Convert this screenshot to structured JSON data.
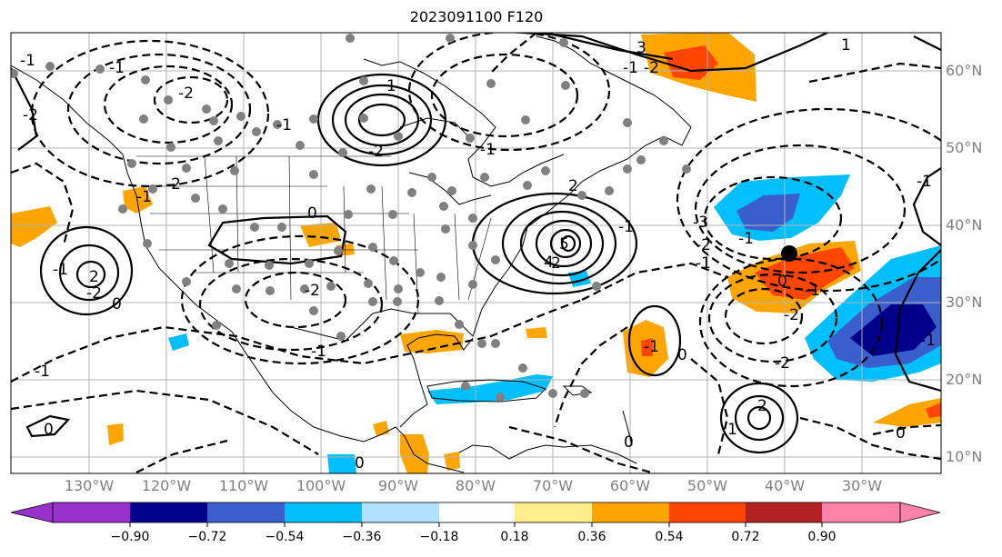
{
  "title": "2023091100 F120",
  "map": {
    "lat_labels": [
      "60°N",
      "50°N",
      "40°N",
      "30°N",
      "20°N",
      "10°N"
    ],
    "lon_labels": [
      "130°W",
      "120°W",
      "110°W",
      "100°W",
      "90°W",
      "80°W",
      "70°W",
      "60°W",
      "50°W",
      "40°W",
      "30°W"
    ],
    "contour_labels": [
      "-1",
      "-2",
      "-1",
      "-2",
      "1",
      "-1",
      "-2",
      "-1",
      "-2",
      "-1",
      "-2",
      "2",
      "0",
      "-1",
      "3",
      "-2",
      "-1",
      "1",
      "-2",
      "-1",
      "0",
      "-1",
      "0",
      "-2",
      "-1",
      "2",
      "5",
      "4",
      "-3",
      "-2",
      "-1",
      "0",
      "-1",
      "-2",
      "-2",
      "2",
      "1",
      "-1",
      "0",
      "-1",
      "0",
      "0",
      "-1",
      "-1",
      "0"
    ],
    "marker": "storm-center"
  },
  "colorbar": {
    "tick_labels": [
      "−0.90",
      "−0.72",
      "−0.54",
      "−0.36",
      "−0.18",
      "0.18",
      "0.36",
      "0.54",
      "0.72",
      "0.90"
    ],
    "colors": [
      "#9932cc",
      "#00008b",
      "#3a5fcd",
      "#00bfff",
      "#b0e2ff",
      "#ffffff",
      "#ffec8b",
      "#ffa500",
      "#ff4500",
      "#b22222",
      "#ff82ab"
    ]
  }
}
